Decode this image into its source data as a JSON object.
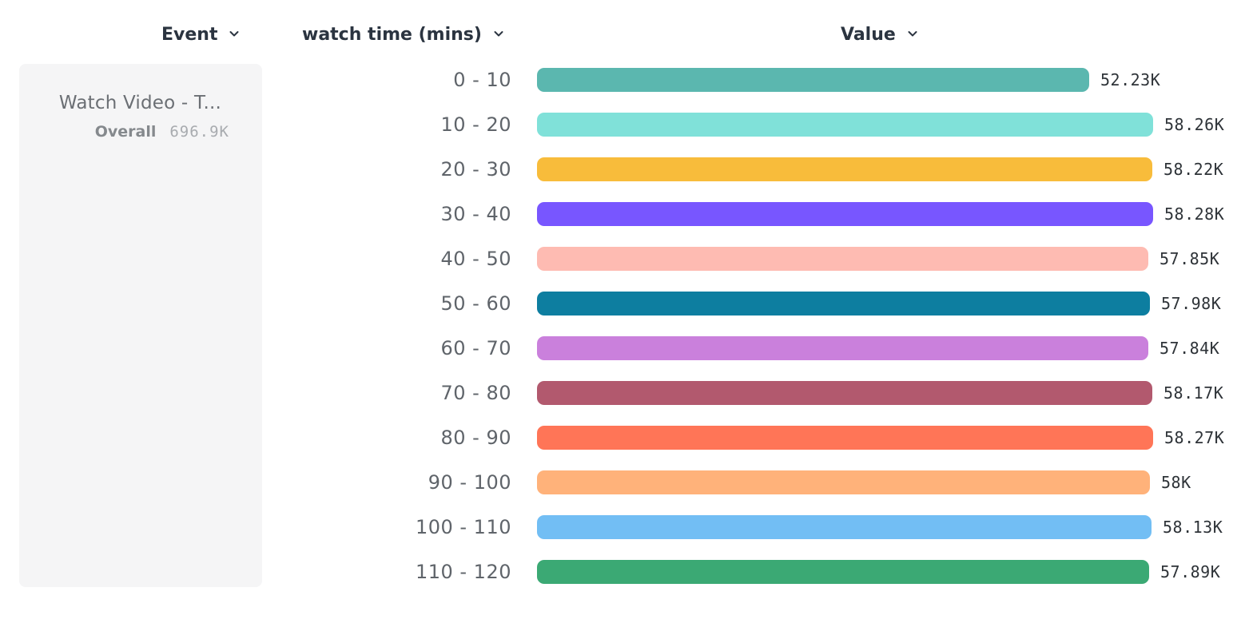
{
  "header": {
    "columns": [
      {
        "id": "event",
        "label": "Event"
      },
      {
        "id": "breakdown",
        "label": "watch time (mins)"
      },
      {
        "id": "value",
        "label": "Value"
      }
    ]
  },
  "event_card": {
    "title": "Watch Video - T...",
    "overall_label": "Overall",
    "overall_value": "696.9K"
  },
  "chart_data": {
    "type": "bar",
    "orientation": "horizontal",
    "title": "",
    "xlabel": "Value",
    "ylabel": "watch time (mins)",
    "categories": [
      "0 - 10",
      "10 - 20",
      "20 - 30",
      "30 - 40",
      "40 - 50",
      "50 - 60",
      "60 - 70",
      "70 - 80",
      "80 - 90",
      "90 - 100",
      "100 - 110",
      "110 - 120"
    ],
    "values": [
      52230,
      58260,
      58220,
      58280,
      57850,
      57980,
      57840,
      58170,
      58270,
      58000,
      58130,
      57890
    ],
    "value_labels": [
      "52.23K",
      "58.26K",
      "58.22K",
      "58.28K",
      "57.85K",
      "57.98K",
      "57.84K",
      "58.17K",
      "58.27K",
      "58K",
      "58.13K",
      "57.89K"
    ],
    "colors": [
      "#5BB7AF",
      "#80E1D9",
      "#F8BC3B",
      "#7856FF",
      "#FEBBB2",
      "#0D7EA0",
      "#CA80DC",
      "#B2596E",
      "#FF7557",
      "#FFB27A",
      "#72BEF4",
      "#3BA974"
    ],
    "xlim": [
      0,
      58280
    ],
    "grid": false,
    "legend": "none"
  },
  "ui_colors": {
    "header_text": "#2b3440",
    "category_text": "#5f646a",
    "value_text": "#2e3338",
    "card_background": "#f5f5f6"
  }
}
